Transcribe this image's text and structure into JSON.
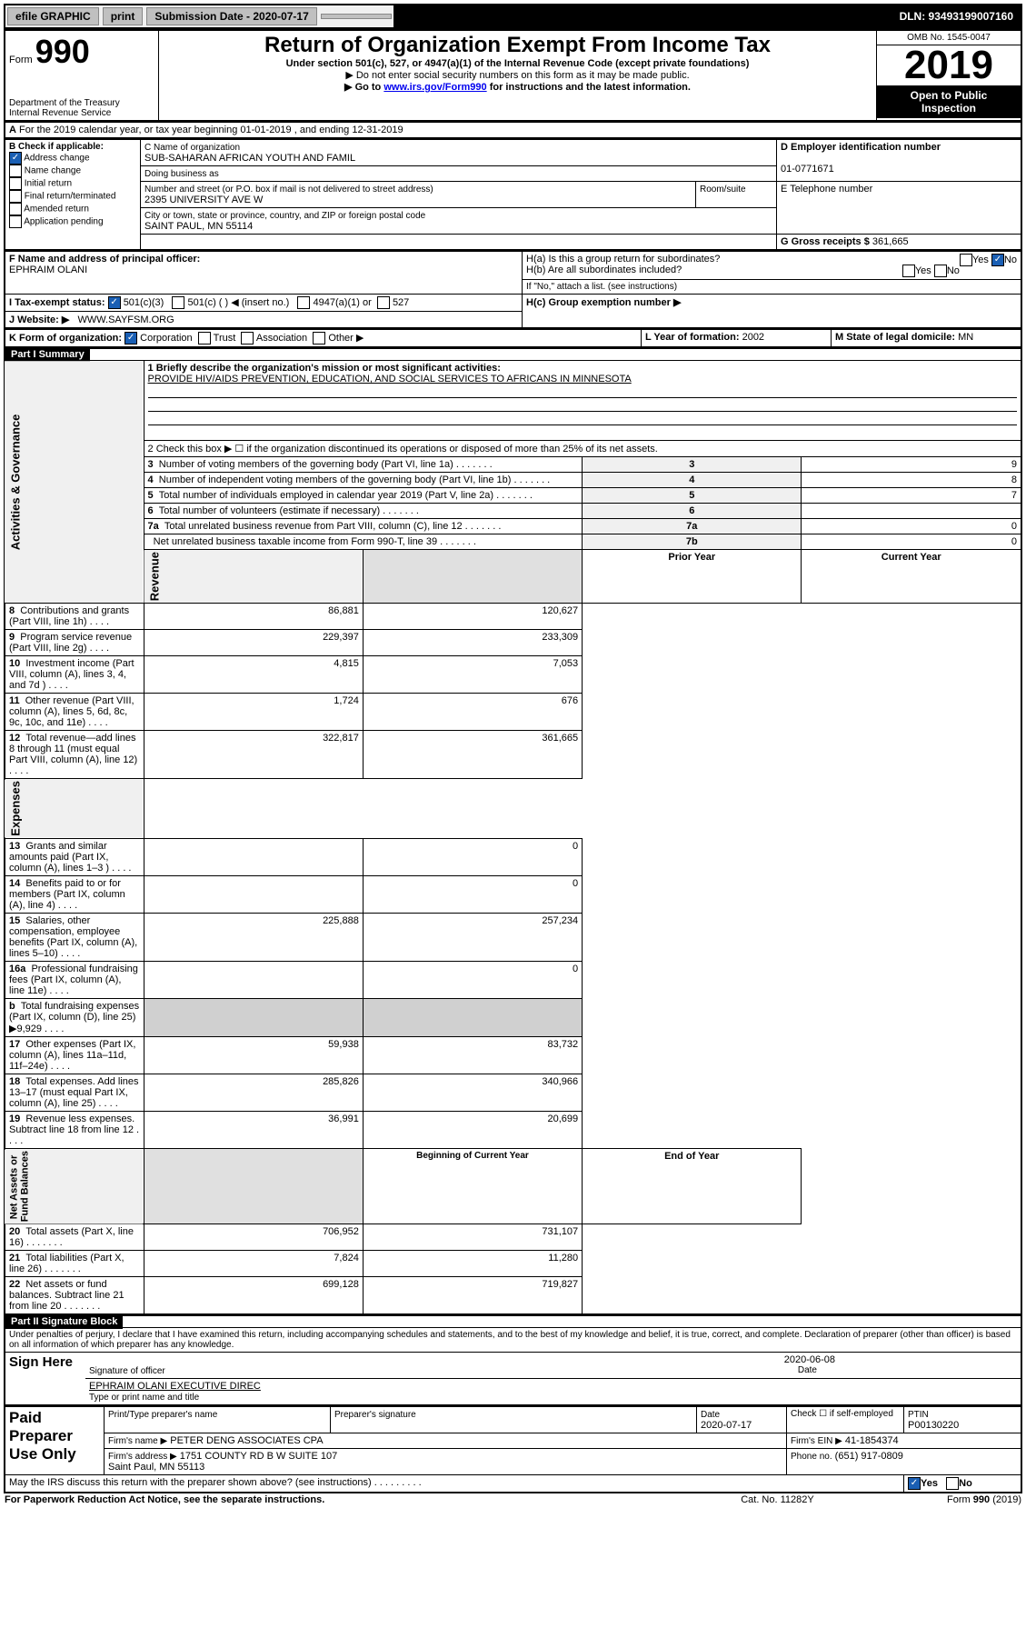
{
  "topbar": {
    "efile": "efile GRAPHIC",
    "print": "print",
    "sub_label": "Submission Date - 2020-07-17",
    "dln": "DLN: 93493199007160"
  },
  "header": {
    "form_label": "Form",
    "form_number": "990",
    "dept": "Department of the Treasury\nInternal Revenue Service",
    "title": "Return of Organization Exempt From Income Tax",
    "subtitle": "Under section 501(c), 527, or 4947(a)(1) of the Internal Revenue Code (except private foundations)",
    "note1": "▶ Do not enter social security numbers on this form as it may be made public.",
    "note2_prefix": "▶ Go to ",
    "note2_link": "www.irs.gov/Form990",
    "note2_suffix": " for instructions and the latest information.",
    "omb": "OMB No. 1545-0047",
    "year": "2019",
    "open": "Open to Public\nInspection"
  },
  "A": {
    "text": "For the 2019 calendar year, or tax year beginning 01-01-2019    , and ending 12-31-2019"
  },
  "B": {
    "label": "B Check if applicable:",
    "items": [
      "Address change",
      "Name change",
      "Initial return",
      "Final return/terminated",
      "Amended return",
      "Application pending"
    ]
  },
  "C": {
    "name_label": "C Name of organization",
    "name": "SUB-SAHARAN AFRICAN YOUTH AND FAMIL",
    "dba_label": "Doing business as",
    "addr_label": "Number and street (or P.O. box if mail is not delivered to street address)",
    "room_label": "Room/suite",
    "addr": "2395 UNIVERSITY AVE W",
    "city_label": "City or town, state or province, country, and ZIP or foreign postal code",
    "city": "SAINT PAUL, MN  55114"
  },
  "D": {
    "label": "D Employer identification number",
    "value": "01-0771671"
  },
  "E": {
    "label": "E Telephone number"
  },
  "G": {
    "label": "G Gross receipts $",
    "value": "361,665"
  },
  "F": {
    "label": "F  Name and address of principal officer:",
    "value": "EPHRAIM OLANI"
  },
  "H": {
    "a": "H(a)  Is this a group return for subordinates?",
    "b": "H(b)  Are all subordinates included?",
    "b_note": "If \"No,\" attach a list. (see instructions)",
    "c": "H(c)  Group exemption number ▶",
    "yes": "Yes",
    "no": "No"
  },
  "I": {
    "label": "I    Tax-exempt status:",
    "opts": [
      "501(c)(3)",
      "501(c) (  ) ◀ (insert no.)",
      "4947(a)(1) or",
      "527"
    ]
  },
  "J": {
    "label": "J    Website: ▶",
    "value": "WWW.SAYFSM.ORG"
  },
  "K": {
    "label": "K Form of organization:",
    "opts": [
      "Corporation",
      "Trust",
      "Association",
      "Other ▶"
    ]
  },
  "L": {
    "label": "L Year of formation:",
    "value": "2002"
  },
  "M": {
    "label": "M State of legal domicile:",
    "value": "MN"
  },
  "partI": {
    "header": "Part I       Summary",
    "line1_label": "1  Briefly describe the organization's mission or most significant activities:",
    "line1_value": "PROVIDE HIV/AIDS PREVENTION, EDUCATION, AND SOCIAL SERVICES TO AFRICANS IN MINNESOTA",
    "line2": "2    Check this box ▶ ☐  if the organization discontinued its operations or disposed of more than 25% of its net assets.",
    "sections": {
      "gov": "Activities & Governance",
      "rev": "Revenue",
      "exp": "Expenses",
      "net": "Net Assets or\nFund Balances"
    },
    "gov_rows": [
      {
        "n": "3",
        "t": "Number of voting members of the governing body (Part VI, line 1a)",
        "k": "3",
        "v": "9"
      },
      {
        "n": "4",
        "t": "Number of independent voting members of the governing body (Part VI, line 1b)",
        "k": "4",
        "v": "8"
      },
      {
        "n": "5",
        "t": "Total number of individuals employed in calendar year 2019 (Part V, line 2a)",
        "k": "5",
        "v": "7"
      },
      {
        "n": "6",
        "t": "Total number of volunteers (estimate if necessary)",
        "k": "6",
        "v": ""
      },
      {
        "n": "7a",
        "t": "Total unrelated business revenue from Part VIII, column (C), line 12",
        "k": "7a",
        "v": "0"
      },
      {
        "n": "",
        "t": "Net unrelated business taxable income from Form 990-T, line 39",
        "k": "7b",
        "v": "0"
      }
    ],
    "year_headers": {
      "prior": "Prior Year",
      "current": "Current Year",
      "beg": "Beginning of Current Year",
      "end": "End of Year"
    },
    "rev_rows": [
      {
        "n": "8",
        "t": "Contributions and grants (Part VIII, line 1h)",
        "p": "86,881",
        "c": "120,627"
      },
      {
        "n": "9",
        "t": "Program service revenue (Part VIII, line 2g)",
        "p": "229,397",
        "c": "233,309"
      },
      {
        "n": "10",
        "t": "Investment income (Part VIII, column (A), lines 3, 4, and 7d )",
        "p": "4,815",
        "c": "7,053"
      },
      {
        "n": "11",
        "t": "Other revenue (Part VIII, column (A), lines 5, 6d, 8c, 9c, 10c, and 11e)",
        "p": "1,724",
        "c": "676"
      },
      {
        "n": "12",
        "t": "Total revenue—add lines 8 through 11 (must equal Part VIII, column (A), line 12)",
        "p": "322,817",
        "c": "361,665"
      }
    ],
    "exp_rows": [
      {
        "n": "13",
        "t": "Grants and similar amounts paid (Part IX, column (A), lines 1–3 )",
        "p": "",
        "c": "0"
      },
      {
        "n": "14",
        "t": "Benefits paid to or for members (Part IX, column (A), line 4)",
        "p": "",
        "c": "0"
      },
      {
        "n": "15",
        "t": "Salaries, other compensation, employee benefits (Part IX, column (A), lines 5–10)",
        "p": "225,888",
        "c": "257,234"
      },
      {
        "n": "16a",
        "t": "Professional fundraising fees (Part IX, column (A), line 11e)",
        "p": "",
        "c": "0"
      },
      {
        "n": "b",
        "t": "Total fundraising expenses (Part IX, column (D), line 25) ▶9,929",
        "p": "",
        "c": "",
        "shade": true
      },
      {
        "n": "17",
        "t": "Other expenses (Part IX, column (A), lines 11a–11d, 11f–24e)",
        "p": "59,938",
        "c": "83,732"
      },
      {
        "n": "18",
        "t": "Total expenses. Add lines 13–17 (must equal Part IX, column (A), line 25)",
        "p": "285,826",
        "c": "340,966"
      },
      {
        "n": "19",
        "t": "Revenue less expenses. Subtract line 18 from line 12",
        "p": "36,991",
        "c": "20,699"
      }
    ],
    "net_rows": [
      {
        "n": "20",
        "t": "Total assets (Part X, line 16)",
        "p": "706,952",
        "c": "731,107"
      },
      {
        "n": "21",
        "t": "Total liabilities (Part X, line 26)",
        "p": "7,824",
        "c": "11,280"
      },
      {
        "n": "22",
        "t": "Net assets or fund balances. Subtract line 21 from line 20",
        "p": "699,128",
        "c": "719,827"
      }
    ]
  },
  "partII": {
    "header": "Part II      Signature Block",
    "decl": "Under penalties of perjury, I declare that I have examined this return, including accompanying schedules and statements, and to the best of my knowledge and belief, it is true, correct, and complete. Declaration of preparer (other than officer) is based on all information of which preparer has any knowledge.",
    "sign_here": "Sign Here",
    "sig_date": "2020-06-08",
    "sig_label": "Signature of officer",
    "date_label": "Date",
    "name_title": "EPHRAIM OLANI EXECUTIVE DIREC",
    "name_title_label": "Type or print name and title",
    "paid": "Paid Preparer Use Only",
    "prep_name_label": "Print/Type preparer's name",
    "prep_sig_label": "Preparer's signature",
    "prep_date_label": "Date",
    "prep_date": "2020-07-17",
    "check_label": "Check ☐ if self-employed",
    "ptin_label": "PTIN",
    "ptin": "P00130220",
    "firm_name_label": "Firm's name    ▶",
    "firm_name": "PETER DENG ASSOCIATES CPA",
    "firm_ein_label": "Firm's EIN ▶",
    "firm_ein": "41-1854374",
    "firm_addr_label": "Firm's address ▶",
    "firm_addr": "1751 COUNTY RD B W SUITE 107\nSaint Paul, MN  55113",
    "phone_label": "Phone no.",
    "phone": "(651) 917-0809",
    "discuss": "May the IRS discuss this return with the preparer shown above? (see instructions)",
    "notice": "For Paperwork Reduction Act Notice, see the separate instructions.",
    "cat": "Cat. No. 11282Y",
    "form_foot": "Form 990 (2019)"
  }
}
